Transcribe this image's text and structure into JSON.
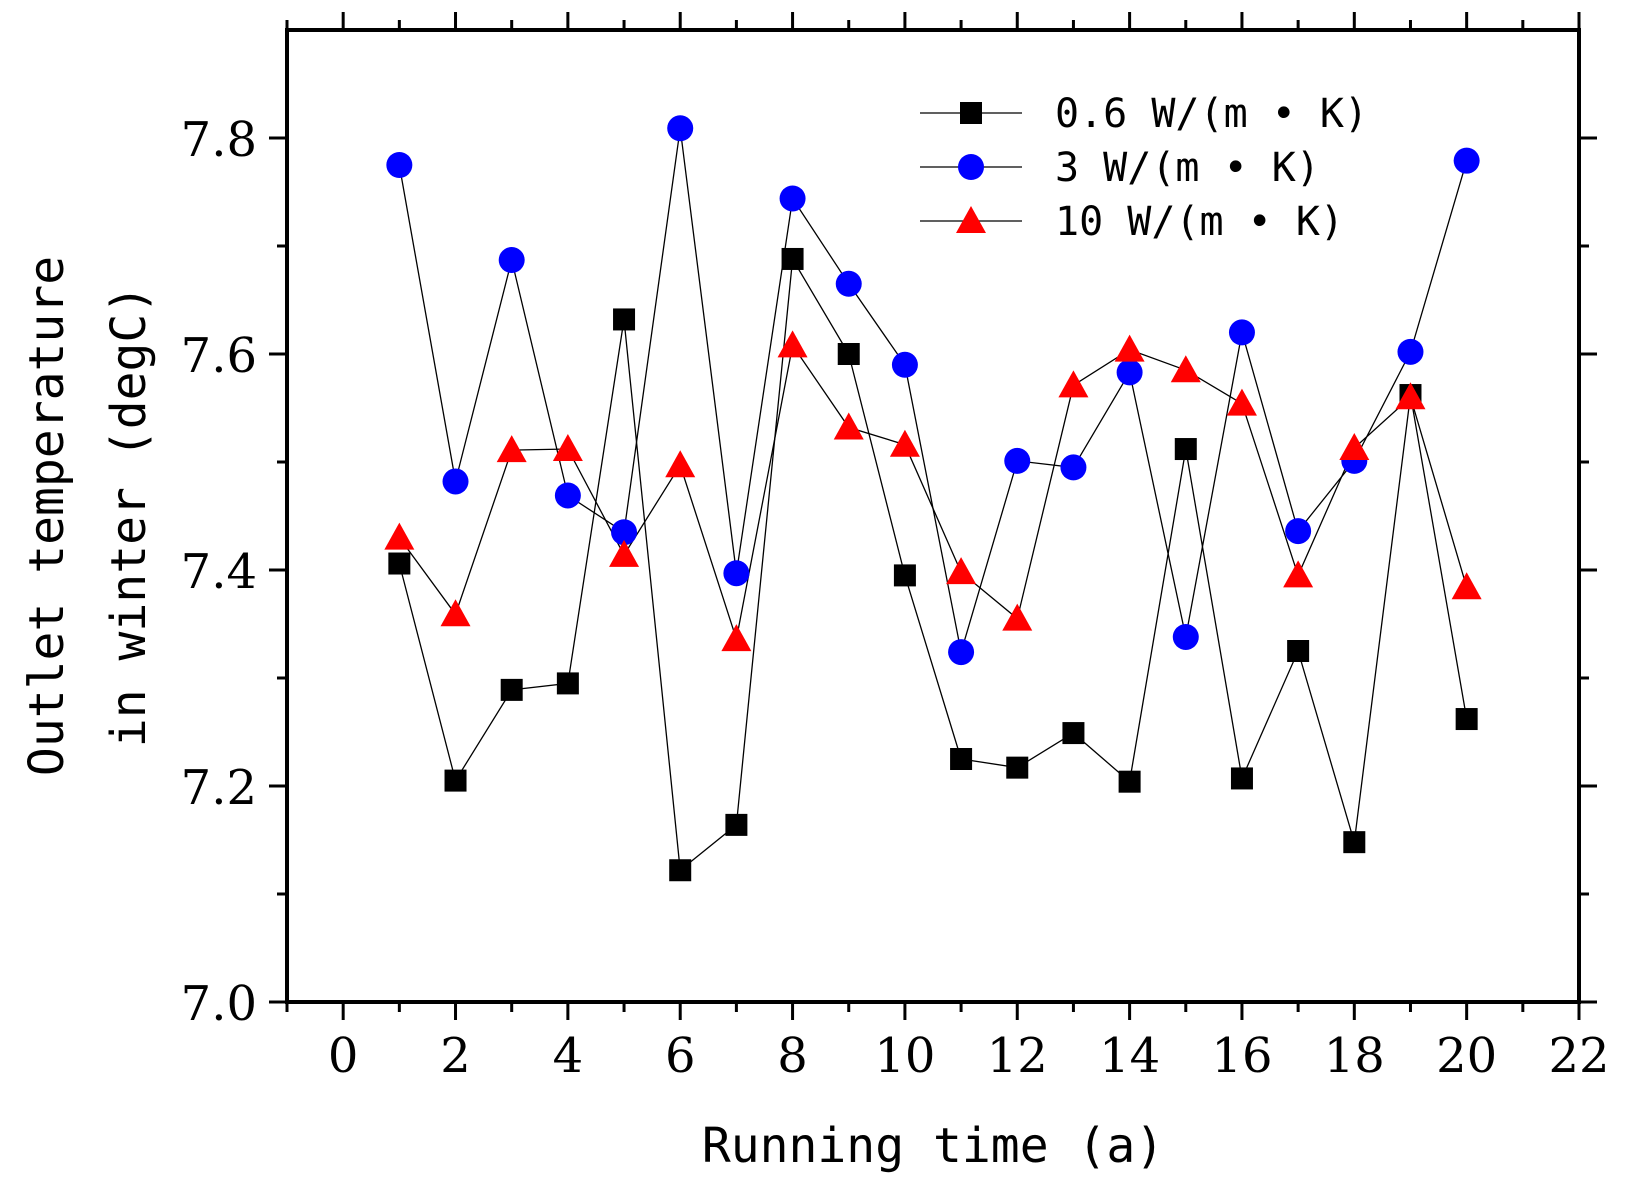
{
  "chart_data": {
    "type": "line",
    "title": "",
    "xlabel": "Running time (a)",
    "ylabel_lines": [
      "Outlet temperature",
      "in winter (degC)"
    ],
    "xlim": [
      -1,
      22
    ],
    "ylim": [
      7.0,
      7.9
    ],
    "x_ticks": [
      0,
      2,
      4,
      6,
      8,
      10,
      12,
      14,
      16,
      18,
      20,
      22
    ],
    "x_tick_labels": [
      "0",
      "2",
      "4",
      "6",
      "8",
      "10",
      "12",
      "14",
      "16",
      "18",
      "20",
      "22"
    ],
    "y_ticks": [
      7.0,
      7.2,
      7.4,
      7.6,
      7.8
    ],
    "y_tick_labels": [
      "7.0",
      "7.2",
      "7.4",
      "7.6",
      "7.8"
    ],
    "y_minor_ticks": [
      7.1,
      7.3,
      7.5,
      7.7
    ],
    "grid": false,
    "legend_position": "top-right",
    "x": [
      1,
      2,
      3,
      4,
      5,
      6,
      7,
      8,
      9,
      10,
      11,
      12,
      13,
      14,
      15,
      16,
      17,
      18,
      19,
      20
    ],
    "series": [
      {
        "name": "0.6 W/(m • K)",
        "marker": "square",
        "color": "#000000",
        "values": [
          7.406,
          7.205,
          7.289,
          7.295,
          7.632,
          7.122,
          7.164,
          7.688,
          7.6,
          7.395,
          7.225,
          7.217,
          7.249,
          7.204,
          7.512,
          7.207,
          7.325,
          7.148,
          7.562,
          7.262
        ]
      },
      {
        "name": "3 W/(m • K)",
        "marker": "circle",
        "color": "#0000ff",
        "values": [
          7.775,
          7.482,
          7.687,
          7.469,
          7.435,
          7.809,
          7.397,
          7.744,
          7.665,
          7.59,
          7.324,
          7.501,
          7.495,
          7.583,
          7.338,
          7.62,
          7.436,
          7.501,
          7.602,
          7.779
        ]
      },
      {
        "name": "10 W/(m • K)",
        "marker": "triangle",
        "color": "#ff0000",
        "values": [
          7.43,
          7.359,
          7.511,
          7.512,
          7.414,
          7.497,
          7.336,
          7.608,
          7.532,
          7.516,
          7.398,
          7.355,
          7.571,
          7.604,
          7.585,
          7.554,
          7.395,
          7.513,
          7.56,
          7.384
        ]
      }
    ]
  }
}
